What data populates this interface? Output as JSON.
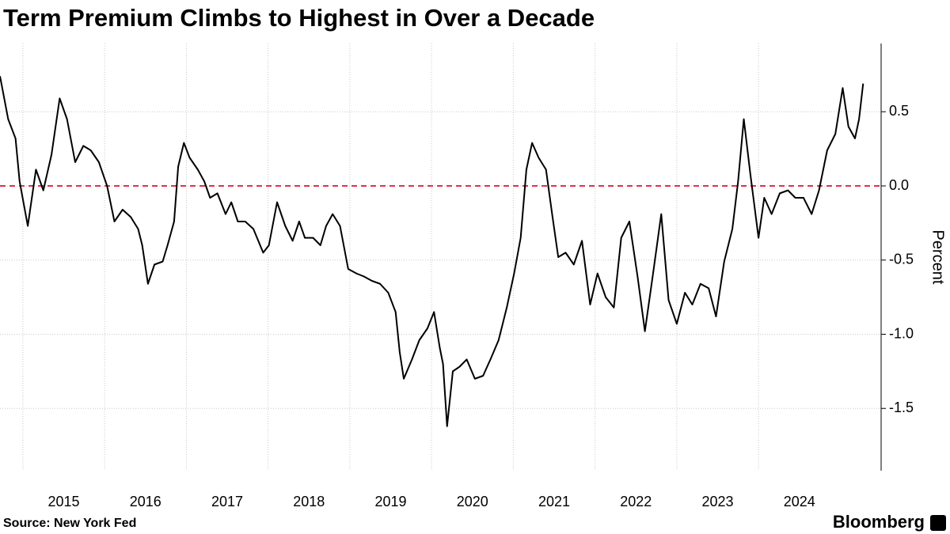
{
  "chart_data": {
    "type": "line",
    "title": "Term Premium Climbs to Highest in Over a Decade",
    "y_label": "Percent",
    "source": "Source: New York Fed",
    "brand": "Bloomberg",
    "x": [
      2014.72,
      2014.82,
      2014.91,
      2014.96,
      2015.06,
      2015.16,
      2015.25,
      2015.35,
      2015.45,
      2015.54,
      2015.64,
      2015.74,
      2015.83,
      2015.93,
      2016.03,
      2016.12,
      2016.22,
      2016.32,
      2016.41,
      2016.46,
      2016.53,
      2016.61,
      2016.71,
      2016.77,
      2016.85,
      2016.9,
      2016.97,
      2017.04,
      2017.14,
      2017.22,
      2017.29,
      2017.38,
      2017.48,
      2017.55,
      2017.63,
      2017.72,
      2017.82,
      2017.94,
      2018.01,
      2018.11,
      2018.21,
      2018.3,
      2018.38,
      2018.45,
      2018.55,
      2018.64,
      2018.71,
      2018.79,
      2018.88,
      2018.98,
      2019.08,
      2019.17,
      2019.27,
      2019.37,
      2019.47,
      2019.56,
      2019.61,
      2019.66,
      2019.76,
      2019.85,
      2019.95,
      2020.03,
      2020.1,
      2020.14,
      2020.19,
      2020.26,
      2020.34,
      2020.43,
      2020.53,
      2020.63,
      2020.72,
      2020.82,
      2020.92,
      2021.01,
      2021.09,
      2021.16,
      2021.23,
      2021.31,
      2021.4,
      2021.48,
      2021.55,
      2021.64,
      2021.74,
      2021.84,
      2021.94,
      2022.03,
      2022.13,
      2022.23,
      2022.32,
      2022.42,
      2022.52,
      2022.61,
      2022.71,
      2022.81,
      2022.9,
      2023.0,
      2023.1,
      2023.19,
      2023.29,
      2023.39,
      2023.48,
      2023.58,
      2023.68,
      2023.75,
      2023.82,
      2023.9,
      2024.0,
      2024.07,
      2024.16,
      2024.26,
      2024.36,
      2024.45,
      2024.55,
      2024.65,
      2024.74,
      2024.84,
      2024.94,
      2025.03,
      2025.1,
      2025.18,
      2025.23,
      2025.28
    ],
    "series": [
      {
        "name": "Term Premium",
        "color": "#000000",
        "values": [
          0.74,
          0.45,
          0.32,
          0.03,
          -0.27,
          0.11,
          -0.03,
          0.21,
          0.59,
          0.45,
          0.16,
          0.27,
          0.24,
          0.16,
          0,
          -0.24,
          -0.16,
          -0.21,
          -0.29,
          -0.4,
          -0.66,
          -0.53,
          -0.51,
          -0.4,
          -0.24,
          0.13,
          0.29,
          0.19,
          0.11,
          0.03,
          -0.08,
          -0.05,
          -0.19,
          -0.11,
          -0.24,
          -0.24,
          -0.29,
          -0.45,
          -0.4,
          -0.11,
          -0.27,
          -0.37,
          -0.24,
          -0.35,
          -0.35,
          -0.4,
          -0.27,
          -0.19,
          -0.27,
          -0.56,
          -0.59,
          -0.61,
          -0.64,
          -0.66,
          -0.72,
          -0.85,
          -1.12,
          -1.3,
          -1.17,
          -1.04,
          -0.96,
          -0.85,
          -1.09,
          -1.2,
          -1.62,
          -1.25,
          -1.22,
          -1.17,
          -1.3,
          -1.28,
          -1.17,
          -1.04,
          -0.82,
          -0.59,
          -0.35,
          0.11,
          0.29,
          0.19,
          0.11,
          -0.21,
          -0.48,
          -0.45,
          -0.53,
          -0.37,
          -0.8,
          -0.59,
          -0.75,
          -0.82,
          -0.35,
          -0.24,
          -0.61,
          -0.98,
          -0.59,
          -0.19,
          -0.77,
          -0.93,
          -0.72,
          -0.8,
          -0.66,
          -0.69,
          -0.88,
          -0.51,
          -0.29,
          0.03,
          0.45,
          0.08,
          -0.35,
          -0.08,
          -0.19,
          -0.05,
          -0.03,
          -0.08,
          -0.08,
          -0.19,
          -0.03,
          0.24,
          0.35,
          0.66,
          0.4,
          0.32,
          0.45,
          0.69
        ]
      }
    ],
    "xlim": [
      2014.72,
      2025.5
    ],
    "xticks": [
      2015,
      2016,
      2017,
      2018,
      2019,
      2020,
      2021,
      2022,
      2023,
      2024
    ],
    "ylim": [
      -1.92,
      0.96
    ],
    "yticks": [
      0.5,
      {
        "value": 0,
        "label": "0.0"
      },
      -0.5,
      {
        "value": -1,
        "label": "-1.0"
      },
      -1.5
    ],
    "grid": true,
    "hline": 0,
    "hline_color": "#e0304e"
  }
}
